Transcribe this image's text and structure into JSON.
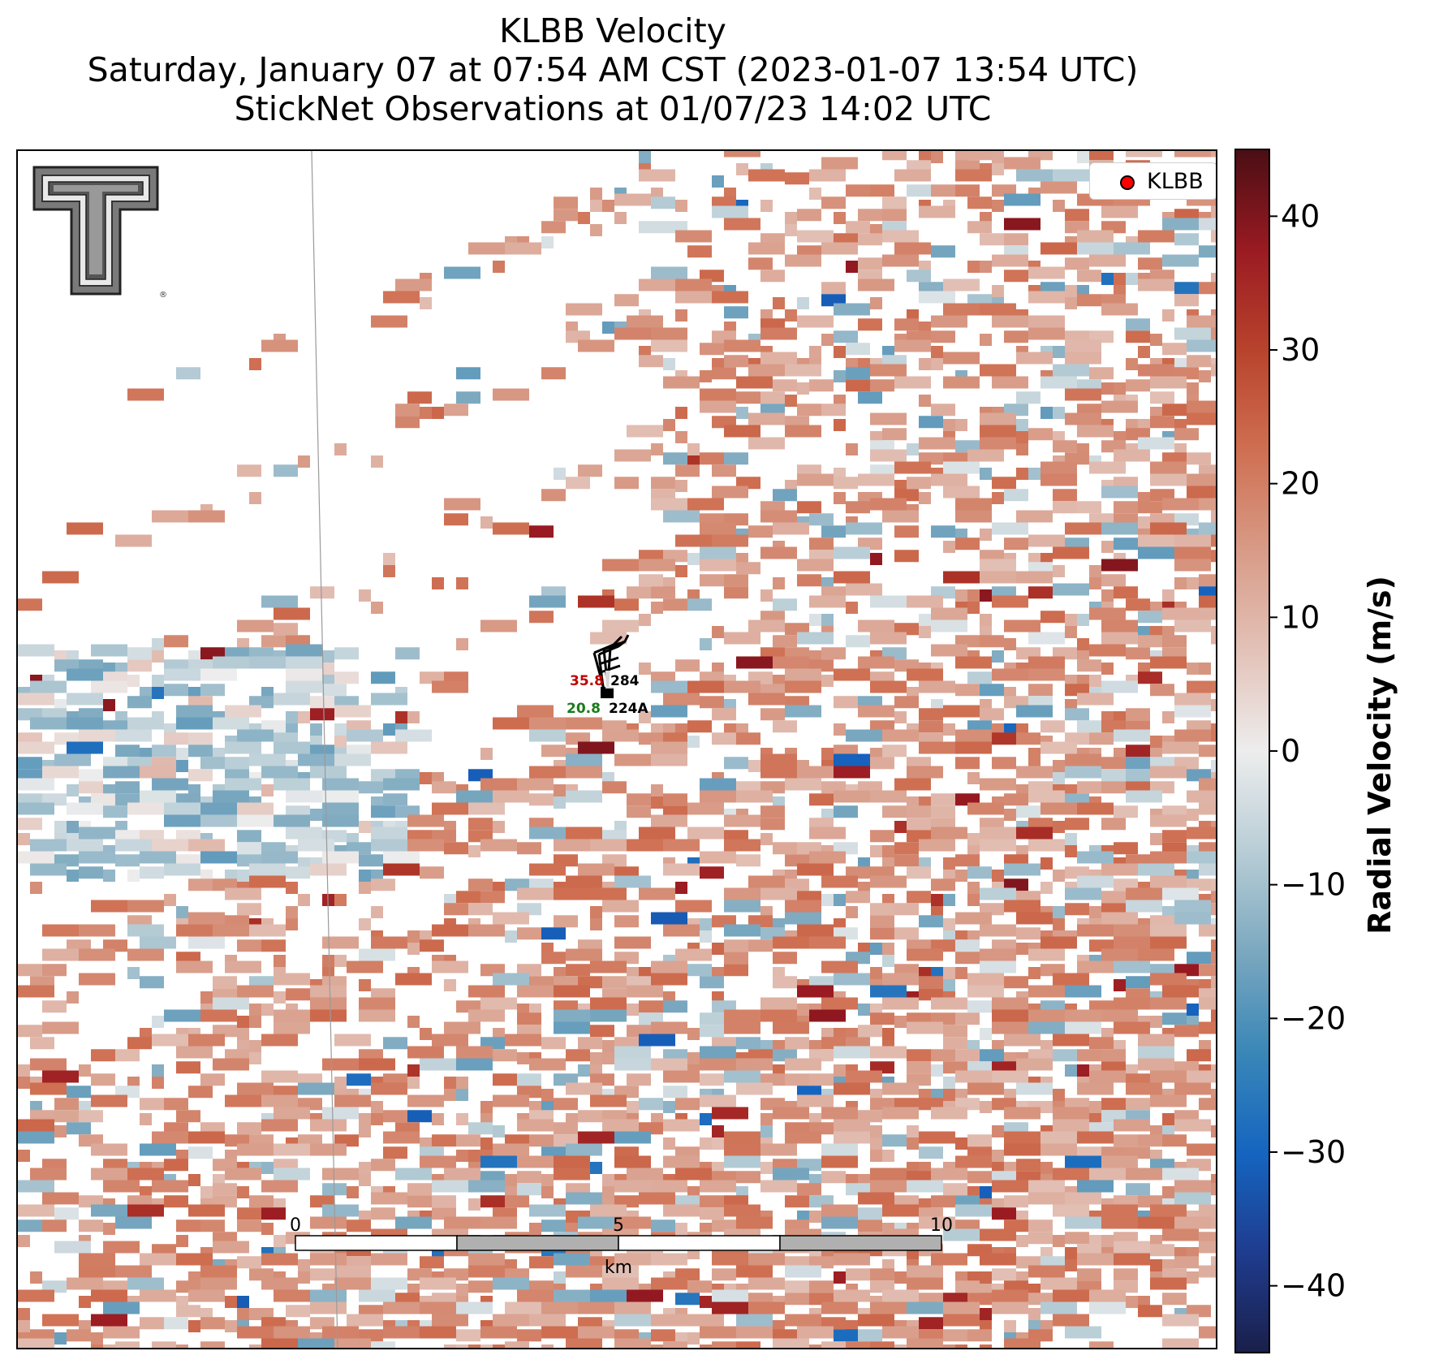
{
  "title": {
    "line1": "KLBB Velocity",
    "line2": "Saturday, January 07 at 07:54 AM CST (2023-01-07 13:54 UTC)",
    "line3": "StickNet Observations at 01/07/23 14:02 UTC"
  },
  "legend": {
    "label": "KLBB",
    "marker_color": "#ff0000"
  },
  "colorbar": {
    "label": "Radial Velocity (m/s)",
    "range": [
      -45,
      45
    ],
    "ticks": [
      40,
      30,
      20,
      10,
      0,
      -10,
      -20,
      -30,
      -40
    ],
    "tick_labels": [
      "40",
      "30",
      "20",
      "10",
      "0",
      "−10",
      "−20",
      "−30",
      "−40"
    ],
    "colormap": [
      "#1a1f4a",
      "#1f3c8f",
      "#1565c0",
      "#3a87b8",
      "#7ba8bf",
      "#b8cdd6",
      "#ededed",
      "#e3c2b8",
      "#d89b87",
      "#cf6f52",
      "#b8432c",
      "#9a1a22",
      "#4a0e14"
    ]
  },
  "scale_bar": {
    "labels": [
      "0",
      "5",
      "10"
    ],
    "unit": "km"
  },
  "stations": [
    {
      "id": "284",
      "value": "35.8",
      "value_color": "#c00000"
    },
    {
      "id": "224A",
      "value": "20.8",
      "value_color": "#1a7a1a"
    }
  ],
  "logo": {
    "name": "texas-tech-double-t-logo"
  }
}
